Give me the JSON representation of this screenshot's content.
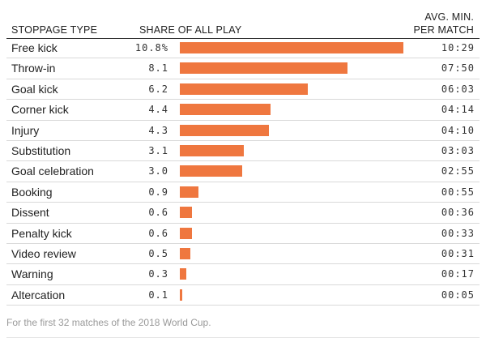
{
  "header": {
    "type_label": "STOPPAGE TYPE",
    "share_label": "SHARE OF ALL PLAY",
    "avg_label_line1": "AVG. MIN.",
    "avg_label_line2": "PER MATCH"
  },
  "footnote": "For the first 32 matches of the 2018 World Cup.",
  "colors": {
    "bar": "#ef773f"
  },
  "chart_data": {
    "type": "bar",
    "orientation": "horizontal",
    "title": "",
    "xlabel": "SHARE OF ALL PLAY",
    "ylabel": "STOPPAGE TYPE",
    "xlim": [
      0,
      10.8
    ],
    "categories": [
      "Free kick",
      "Throw-in",
      "Goal kick",
      "Corner kick",
      "Injury",
      "Substitution",
      "Goal celebration",
      "Booking",
      "Dissent",
      "Penalty kick",
      "Video review",
      "Warning",
      "Altercation"
    ],
    "values": [
      10.8,
      8.1,
      6.2,
      4.4,
      4.3,
      3.1,
      3.0,
      0.9,
      0.6,
      0.6,
      0.5,
      0.3,
      0.1
    ],
    "value_labels": [
      "10.8%",
      "8.1",
      "6.2",
      "4.4",
      "4.3",
      "3.1",
      "3.0",
      "0.9",
      "0.6",
      "0.6",
      "0.5",
      "0.3",
      "0.1"
    ],
    "avg_minutes_per_match": [
      "10:29",
      "07:50",
      "06:03",
      "04:14",
      "04:10",
      "03:03",
      "02:55",
      "00:55",
      "00:36",
      "00:33",
      "00:31",
      "00:17",
      "00:05"
    ]
  }
}
